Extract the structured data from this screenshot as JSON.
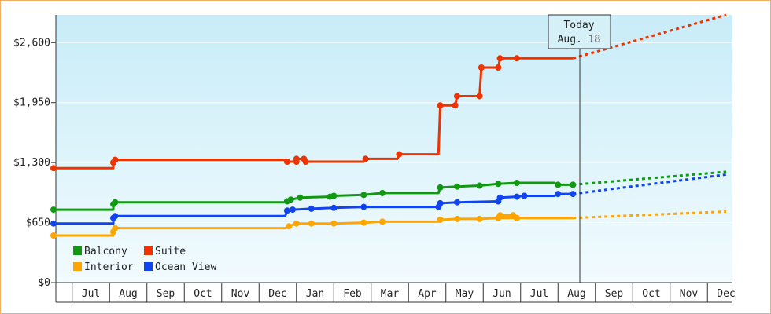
{
  "chart_data": {
    "type": "line",
    "y_ticks": [
      "$0",
      "$650",
      "$1,300",
      "$1,950",
      "$2,600"
    ],
    "y_tick_values": [
      0,
      650,
      1300,
      1950,
      2600
    ],
    "ylim": [
      0,
      2900
    ],
    "x_month_labels": [
      "Jul",
      "Aug",
      "Sep",
      "Oct",
      "Nov",
      "Dec",
      "Jan",
      "Feb",
      "Mar",
      "Apr",
      "May",
      "Jun",
      "Jul",
      "Aug",
      "Sep",
      "Oct",
      "Nov",
      "Dec"
    ],
    "today_callout": {
      "line1": "Today",
      "line2": "Aug. 18"
    },
    "legend": [
      {
        "name": "Balcony",
        "color": "#119911"
      },
      {
        "name": "Suite",
        "color": "#ee3300"
      },
      {
        "name": "Interior",
        "color": "#ffa500"
      },
      {
        "name": "Ocean View",
        "color": "#1144ee"
      }
    ],
    "series": [
      {
        "name": "Suite",
        "color": "#ee3300",
        "points": [
          [
            0,
            1240
          ],
          [
            1.6,
            1240
          ],
          [
            1.6,
            1300
          ],
          [
            1.65,
            1330
          ],
          [
            6.2,
            1330
          ],
          [
            6.25,
            1310
          ],
          [
            6.5,
            1310
          ],
          [
            6.5,
            1340
          ],
          [
            6.7,
            1340
          ],
          [
            6.75,
            1310
          ],
          [
            8.3,
            1310
          ],
          [
            8.35,
            1340
          ],
          [
            9.2,
            1340
          ],
          [
            9.25,
            1390
          ],
          [
            10.3,
            1390
          ],
          [
            10.35,
            1920
          ],
          [
            10.75,
            1920
          ],
          [
            10.8,
            2020
          ],
          [
            11.4,
            2020
          ],
          [
            11.45,
            2330
          ],
          [
            11.9,
            2330
          ],
          [
            11.95,
            2430
          ],
          [
            12.4,
            2430
          ],
          [
            13.9,
            2430
          ]
        ],
        "projection": [
          [
            13.9,
            2430
          ],
          [
            18,
            2900
          ]
        ]
      },
      {
        "name": "Balcony",
        "color": "#119911",
        "points": [
          [
            0,
            790
          ],
          [
            1.6,
            790
          ],
          [
            1.6,
            850
          ],
          [
            1.65,
            870
          ],
          [
            6.2,
            870
          ],
          [
            6.25,
            880
          ],
          [
            6.35,
            900
          ],
          [
            6.6,
            920
          ],
          [
            7.4,
            930
          ],
          [
            7.5,
            940
          ],
          [
            8.3,
            950
          ],
          [
            8.8,
            970
          ],
          [
            10.3,
            970
          ],
          [
            10.35,
            1030
          ],
          [
            10.8,
            1040
          ],
          [
            11.4,
            1050
          ],
          [
            11.9,
            1070
          ],
          [
            12.4,
            1080
          ],
          [
            13.4,
            1080
          ],
          [
            13.5,
            1060
          ],
          [
            13.9,
            1060
          ]
        ],
        "projection": [
          [
            13.9,
            1060
          ],
          [
            18,
            1200
          ]
        ]
      },
      {
        "name": "Ocean View",
        "color": "#1144ee",
        "points": [
          [
            0,
            640
          ],
          [
            1.6,
            640
          ],
          [
            1.6,
            700
          ],
          [
            1.65,
            720
          ],
          [
            6.2,
            720
          ],
          [
            6.25,
            780
          ],
          [
            6.4,
            790
          ],
          [
            6.9,
            800
          ],
          [
            7.5,
            810
          ],
          [
            8.3,
            820
          ],
          [
            9.9,
            820
          ],
          [
            10.3,
            820
          ],
          [
            10.35,
            860
          ],
          [
            10.8,
            870
          ],
          [
            11.9,
            880
          ],
          [
            11.95,
            920
          ],
          [
            12.4,
            930
          ],
          [
            12.6,
            940
          ],
          [
            13.4,
            940
          ],
          [
            13.5,
            960
          ],
          [
            13.9,
            960
          ]
        ],
        "projection": [
          [
            13.9,
            960
          ],
          [
            18,
            1170
          ]
        ]
      },
      {
        "name": "Interior",
        "color": "#ffa500",
        "points": [
          [
            0,
            510
          ],
          [
            1.6,
            510
          ],
          [
            1.6,
            550
          ],
          [
            1.65,
            590
          ],
          [
            6.2,
            590
          ],
          [
            6.3,
            610
          ],
          [
            6.5,
            640
          ],
          [
            6.9,
            640
          ],
          [
            7.5,
            640
          ],
          [
            8.3,
            650
          ],
          [
            8.8,
            660
          ],
          [
            10.3,
            660
          ],
          [
            10.35,
            680
          ],
          [
            10.8,
            690
          ],
          [
            11.4,
            690
          ],
          [
            11.9,
            700
          ],
          [
            12.4,
            700
          ],
          [
            11.95,
            730
          ],
          [
            12.3,
            730
          ],
          [
            12.4,
            700
          ],
          [
            13.9,
            700
          ]
        ],
        "projection": [
          [
            13.9,
            700
          ],
          [
            18,
            770
          ]
        ]
      }
    ]
  }
}
